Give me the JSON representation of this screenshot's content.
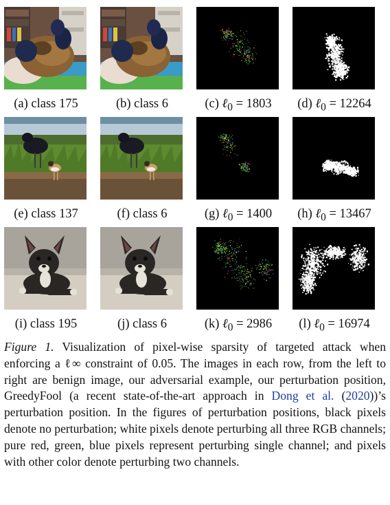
{
  "rows": [
    {
      "cells": [
        {
          "kind": "photo",
          "scene": "dog-on-bed",
          "label": "(a) class 175"
        },
        {
          "kind": "photo",
          "scene": "dog-on-bed",
          "label": "(b) class 6"
        },
        {
          "kind": "sparse-color",
          "label_prefix": "(c) ",
          "label_value": "1803"
        },
        {
          "kind": "sparse-white",
          "label_prefix": "(d) ",
          "label_value": "12264"
        }
      ]
    },
    {
      "cells": [
        {
          "kind": "photo",
          "scene": "birds-on-grass",
          "label": "(e) class 137"
        },
        {
          "kind": "photo",
          "scene": "birds-on-grass",
          "label": "(f) class 6"
        },
        {
          "kind": "sparse-color",
          "label_prefix": "(g) ",
          "label_value": "1400"
        },
        {
          "kind": "sparse-white",
          "label_prefix": "(h) ",
          "label_value": "13467"
        }
      ]
    },
    {
      "cells": [
        {
          "kind": "photo",
          "scene": "boston-terrier",
          "label": "(i) class 195"
        },
        {
          "kind": "photo",
          "scene": "boston-terrier",
          "label": "(j) class 6"
        },
        {
          "kind": "sparse-color",
          "label_prefix": "(k) ",
          "label_value": "2986"
        },
        {
          "kind": "sparse-white",
          "label_prefix": "(l) ",
          "label_value": "16974"
        }
      ]
    }
  ],
  "metric_symbol": "ℓ",
  "metric_subscript": "0",
  "caption": {
    "figure_label": "Figure 1.",
    "text_before_cite": " Visualization of pixel-wise sparsity of targeted attack when enforcing a ℓ∞ constraint of 0.05. The images in each row, from the left to right are benign image, our adversarial example, our perturbation position, GreedyFool (a recent state-of-the-art approach in ",
    "cite_authors": "Dong et al.",
    "cite_open": " (",
    "cite_year": "2020",
    "text_after_cite": "))’s perturbation position. In the figures of perturbation positions, black pixels denote no perturbation; white pixels denote perturbing all three RGB channels; pure red, green, blue pixels represent perturbing single channel; and pixels with other color denote perturbing two channels."
  },
  "colors": {
    "perturb_red": "#ff2a2a",
    "perturb_green": "#3ccf3c",
    "perturb_blue": "#3a5cff",
    "perturb_yellow": "#e6e23a",
    "perturb_white": "#ffffff",
    "background_black": "#000000",
    "cite_link": "#1f3d9e"
  }
}
